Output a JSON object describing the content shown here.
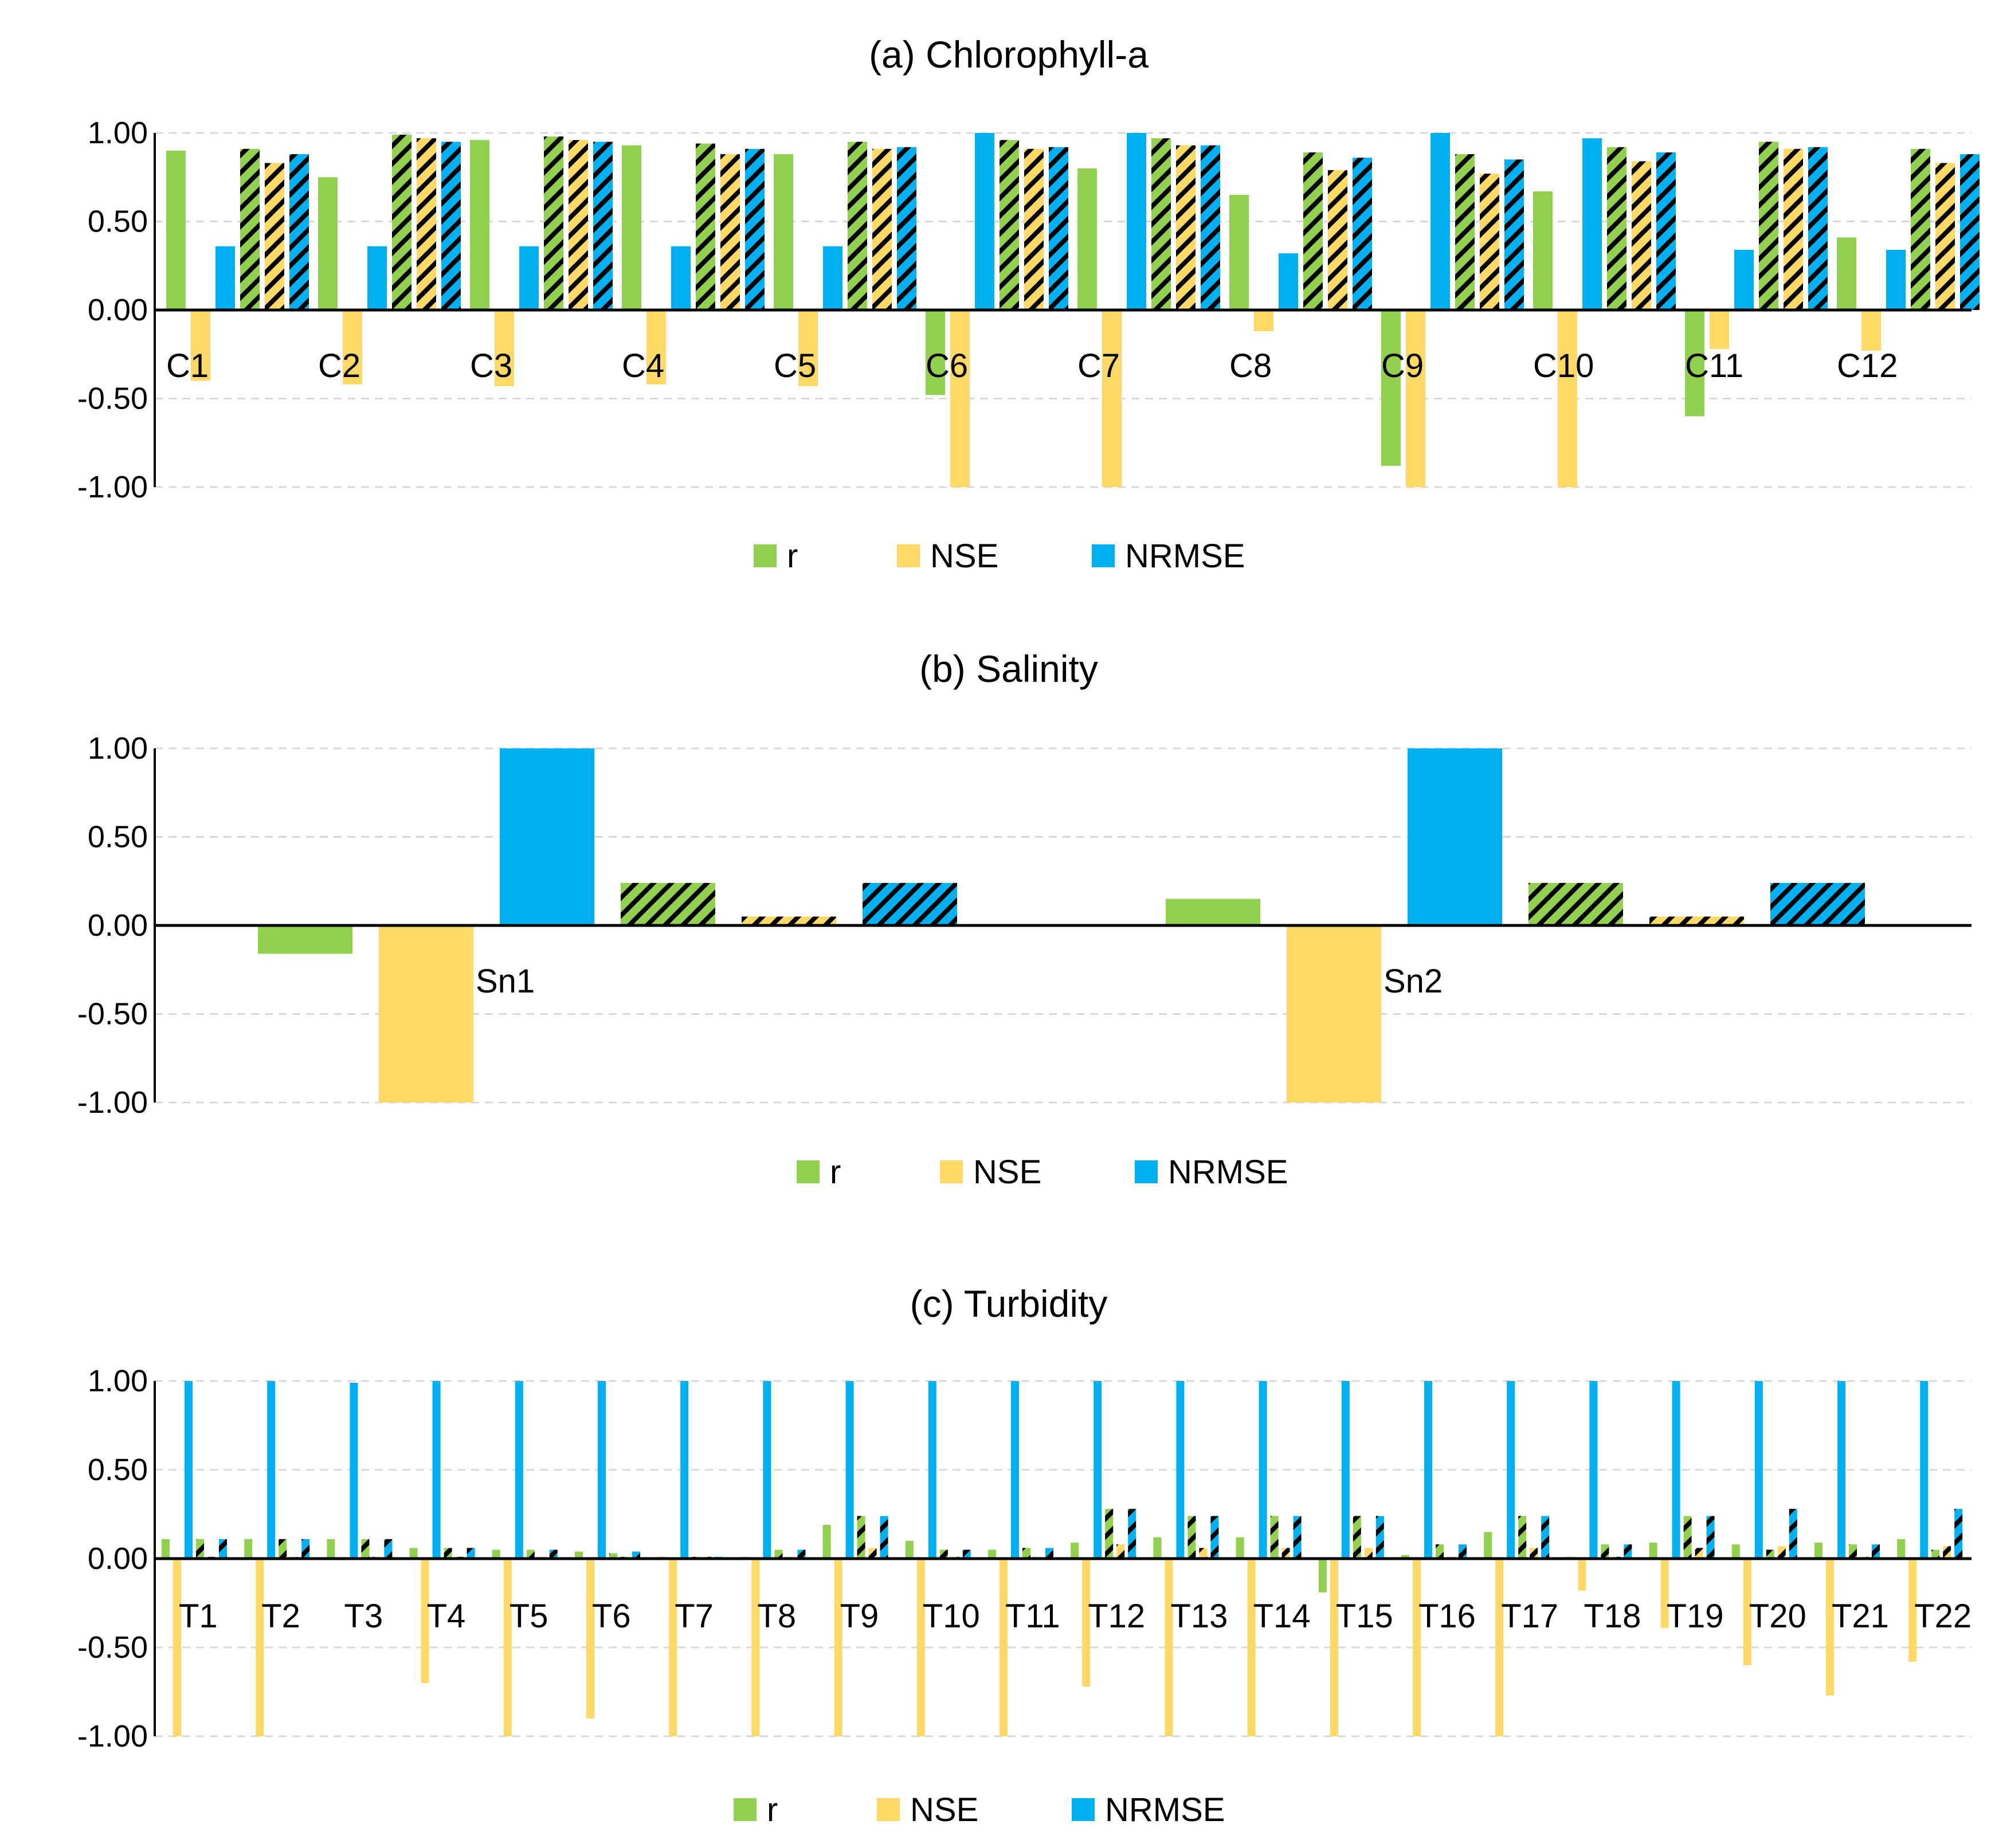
{
  "colors": {
    "r": "#92D050",
    "NSE": "#FFD966",
    "NRMSE": "#00B0F0",
    "grid": "#D9D9D9",
    "axis": "#000000"
  },
  "legend": [
    "r",
    "NSE",
    "NRMSE"
  ],
  "chart_data": [
    {
      "type": "bar",
      "title": "(a) Chlorophyll-a",
      "xlabel": "",
      "ylabel": "",
      "ylim": [
        -1,
        1
      ],
      "yticks": [
        "1.00",
        "0.50",
        "0.00",
        "-0.50",
        "-1.00"
      ],
      "grid": true,
      "legend_position": "bottom",
      "categories": [
        "C1",
        "C2",
        "C3",
        "C4",
        "C5",
        "C6",
        "C7",
        "C8",
        "C9",
        "C10",
        "C11",
        "C12"
      ],
      "series": [
        {
          "name": "r",
          "pattern": "solid",
          "values": [
            0.9,
            0.75,
            0.96,
            0.93,
            0.88,
            -0.48,
            0.8,
            0.65,
            -0.88,
            0.67,
            -0.6,
            0.41
          ]
        },
        {
          "name": "NSE",
          "pattern": "solid",
          "values": [
            -0.4,
            -0.42,
            -0.43,
            -0.42,
            -0.43,
            -1.0,
            -1.0,
            -0.12,
            -1.0,
            -1.0,
            -0.22,
            -0.23
          ]
        },
        {
          "name": "NRMSE",
          "pattern": "solid",
          "values": [
            0.36,
            0.36,
            0.36,
            0.36,
            0.36,
            1.0,
            1.0,
            0.32,
            1.0,
            0.97,
            0.34,
            0.34
          ]
        },
        {
          "name": "r",
          "pattern": "hatched",
          "values": [
            0.91,
            0.99,
            0.98,
            0.94,
            0.95,
            0.96,
            0.97,
            0.89,
            0.88,
            0.92,
            0.95,
            0.91
          ]
        },
        {
          "name": "NSE",
          "pattern": "hatched",
          "values": [
            0.83,
            0.97,
            0.96,
            0.88,
            0.91,
            0.91,
            0.93,
            0.79,
            0.77,
            0.84,
            0.91,
            0.83
          ]
        },
        {
          "name": "NRMSE",
          "pattern": "hatched",
          "values": [
            0.88,
            0.95,
            0.95,
            0.91,
            0.92,
            0.92,
            0.93,
            0.86,
            0.85,
            0.89,
            0.92,
            0.88
          ]
        }
      ]
    },
    {
      "type": "bar",
      "title": "(b) Salinity",
      "xlabel": "",
      "ylabel": "",
      "ylim": [
        -1,
        1
      ],
      "yticks": [
        "1.00",
        "0.50",
        "0.00",
        "-0.50",
        "-1.00"
      ],
      "grid": true,
      "legend_position": "bottom",
      "categories": [
        "Sn1",
        "Sn2"
      ],
      "series": [
        {
          "name": "r",
          "pattern": "solid",
          "values": [
            -0.16,
            0.15
          ]
        },
        {
          "name": "NSE",
          "pattern": "solid",
          "values": [
            -1.0,
            -1.0
          ]
        },
        {
          "name": "NRMSE",
          "pattern": "solid",
          "values": [
            1.0,
            1.0
          ]
        },
        {
          "name": "r",
          "pattern": "hatched",
          "values": [
            0.24,
            0.24
          ]
        },
        {
          "name": "NSE",
          "pattern": "hatched",
          "values": [
            0.05,
            0.05
          ]
        },
        {
          "name": "NRMSE",
          "pattern": "hatched",
          "values": [
            0.24,
            0.24
          ]
        }
      ]
    },
    {
      "type": "bar",
      "title": "(c) Turbidity",
      "xlabel": "",
      "ylabel": "",
      "ylim": [
        -1,
        1
      ],
      "yticks": [
        "1.00",
        "0.50",
        "0.00",
        "-0.50",
        "-1.00"
      ],
      "grid": true,
      "legend_position": "bottom",
      "categories": [
        "T1",
        "T2",
        "T3",
        "T4",
        "T5",
        "T6",
        "T7",
        "T8",
        "T9",
        "T10",
        "T11",
        "T12",
        "T13",
        "T14",
        "T15",
        "T16",
        "T17",
        "T18",
        "T19",
        "T20",
        "T21",
        "T22"
      ],
      "series": [
        {
          "name": "r",
          "pattern": "solid",
          "values": [
            0.11,
            0.11,
            0.11,
            0.06,
            0.05,
            0.04,
            0.01,
            0.01,
            0.19,
            0.1,
            0.05,
            0.09,
            0.12,
            0.12,
            -0.19,
            0.02,
            0.15,
            0.01,
            0.09,
            0.08,
            0.09,
            0.11
          ]
        },
        {
          "name": "NSE",
          "pattern": "solid",
          "values": [
            -1.0,
            -1.0,
            -0.01,
            -0.7,
            -1.0,
            -0.9,
            -1.0,
            -1.0,
            -1.0,
            -1.0,
            -1.0,
            -0.72,
            -1.0,
            -1.0,
            -1.0,
            -1.0,
            -1.0,
            -0.18,
            -0.39,
            -0.6,
            -0.77,
            -0.58
          ]
        },
        {
          "name": "NRMSE",
          "pattern": "solid",
          "values": [
            1.0,
            1.0,
            0.99,
            1.0,
            1.0,
            1.0,
            1.0,
            1.0,
            1.0,
            1.0,
            1.0,
            1.0,
            1.0,
            1.0,
            1.0,
            1.0,
            1.0,
            1.0,
            1.0,
            1.0,
            1.0,
            1.0
          ]
        },
        {
          "name": "r",
          "pattern": "hatched",
          "values": [
            0.11,
            0.11,
            0.11,
            0.06,
            0.05,
            0.03,
            0.01,
            0.05,
            0.24,
            0.05,
            0.06,
            0.28,
            0.24,
            0.24,
            0.24,
            0.08,
            0.24,
            0.08,
            0.24,
            0.05,
            0.08,
            0.05
          ]
        },
        {
          "name": "NSE",
          "pattern": "hatched",
          "values": [
            0.01,
            0.01,
            0.01,
            0.01,
            0.01,
            0.01,
            0.01,
            0.01,
            0.06,
            0.01,
            0.01,
            0.08,
            0.06,
            0.06,
            0.06,
            0.01,
            0.06,
            0.01,
            0.06,
            0.07,
            0.01,
            0.07
          ]
        },
        {
          "name": "NRMSE",
          "pattern": "hatched",
          "values": [
            0.11,
            0.11,
            0.11,
            0.06,
            0.05,
            0.04,
            0.01,
            0.05,
            0.24,
            0.05,
            0.06,
            0.28,
            0.24,
            0.24,
            0.24,
            0.08,
            0.24,
            0.08,
            0.24,
            0.28,
            0.08,
            0.28
          ]
        }
      ]
    }
  ]
}
